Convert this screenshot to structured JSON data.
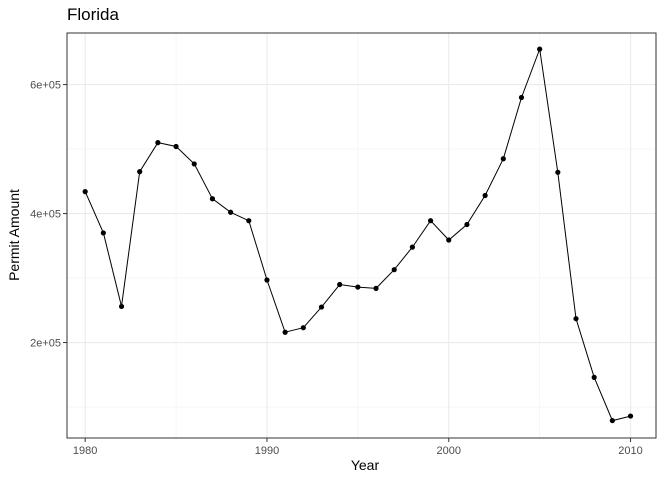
{
  "chart_data": {
    "type": "line",
    "title": "Florida",
    "xlabel": "Year",
    "ylabel": "Permit Amount",
    "xlim": [
      1979,
      2011.4
    ],
    "ylim": [
      52000,
      680000
    ],
    "x_ticks": [
      1980,
      1990,
      2000,
      2010
    ],
    "x_tick_labels": [
      "1980",
      "1990",
      "2000",
      "2010"
    ],
    "y_ticks": [
      200000,
      400000,
      600000
    ],
    "y_tick_labels": [
      "2e+05",
      "4e+05",
      "6e+05"
    ],
    "grid": true,
    "line_color": "#000000",
    "point_color": "#000000",
    "series": [
      {
        "x": [
          1980,
          1981,
          1982,
          1983,
          1984,
          1985,
          1986,
          1987,
          1988,
          1989,
          1990,
          1991,
          1992,
          1993,
          1994,
          1995,
          1996,
          1997,
          1998,
          1999,
          2000,
          2001,
          2002,
          2003,
          2004,
          2005,
          2006,
          2007,
          2008,
          2009,
          2010
        ],
        "values": [
          434000,
          370000,
          256000,
          465000,
          510000,
          504000,
          477000,
          423000,
          402000,
          389000,
          297000,
          216000,
          223000,
          255000,
          290000,
          286000,
          284000,
          313000,
          348000,
          389000,
          359000,
          383000,
          428000,
          485000,
          580000,
          655000,
          464000,
          237000,
          146000,
          79000,
          86000
        ]
      }
    ]
  }
}
